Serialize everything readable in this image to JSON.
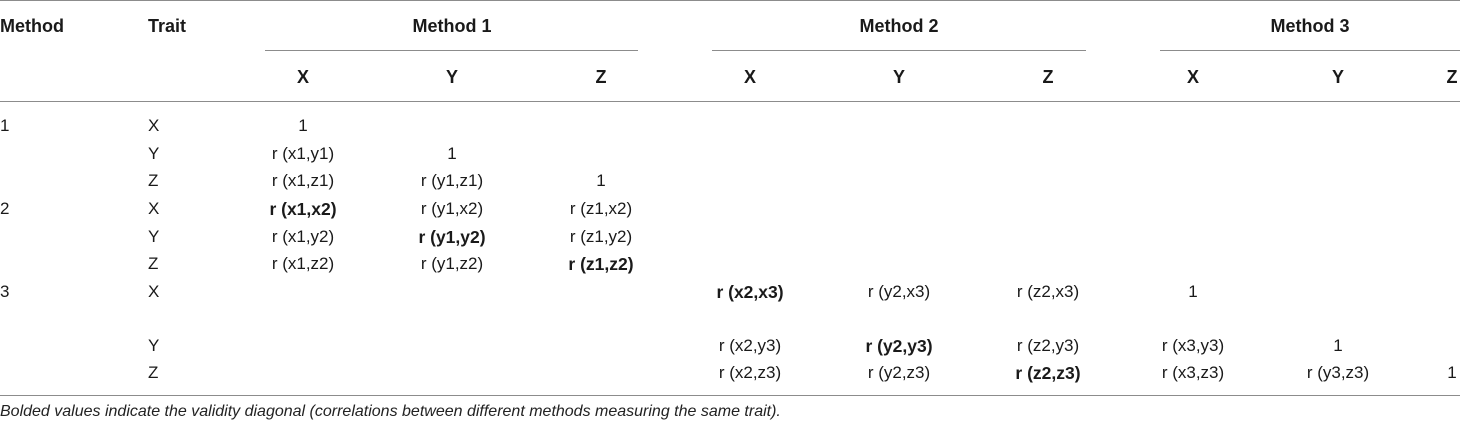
{
  "table": {
    "header": {
      "method": "Method",
      "trait": "Trait",
      "groups": [
        "Method 1",
        "Method 2",
        "Method 3"
      ],
      "sub": [
        "X",
        "Y",
        "Z",
        "X",
        "Y",
        "Z",
        "X",
        "Y",
        "Z"
      ]
    },
    "rows": [
      {
        "method": "1",
        "trait": "X",
        "cells": [
          "1",
          "",
          "",
          "",
          "",
          "",
          "",
          "",
          ""
        ],
        "bold": []
      },
      {
        "method": "",
        "trait": "Y",
        "cells": [
          "r (x1,y1)",
          "1",
          "",
          "",
          "",
          "",
          "",
          "",
          ""
        ],
        "bold": []
      },
      {
        "method": "",
        "trait": "Z",
        "cells": [
          "r (x1,z1)",
          "r (y1,z1)",
          "1",
          "",
          "",
          "",
          "",
          "",
          ""
        ],
        "bold": []
      },
      {
        "method": "2",
        "trait": "X",
        "cells": [
          "r (x1,x2)",
          "r (y1,x2)",
          "r (z1,x2)",
          "",
          "",
          "",
          "",
          "",
          ""
        ],
        "bold": [
          0
        ]
      },
      {
        "method": "",
        "trait": "Y",
        "cells": [
          "r (x1,y2)",
          "r (y1,y2)",
          "r (z1,y2)",
          "",
          "",
          "",
          "",
          "",
          ""
        ],
        "bold": [
          1
        ]
      },
      {
        "method": "",
        "trait": "Z",
        "cells": [
          "r (x1,z2)",
          "r (y1,z2)",
          "r (z1,z2)",
          "",
          "",
          "",
          "",
          "",
          ""
        ],
        "bold": [
          2
        ]
      },
      {
        "method": "3",
        "trait": "X",
        "cells": [
          "",
          "",
          "",
          "r (x2,x3)",
          "r (y2,x3)",
          "r (z2,x3)",
          "1",
          "",
          ""
        ],
        "bold": [
          3
        ]
      },
      {
        "method": "",
        "trait": "Y",
        "cells": [
          "",
          "",
          "",
          "r (x2,y3)",
          "r (y2,y3)",
          "r (z2,y3)",
          "r (x3,y3)",
          "1",
          ""
        ],
        "bold": [
          4
        ]
      },
      {
        "method": "",
        "trait": "Z",
        "cells": [
          "",
          "",
          "",
          "r (x2,z3)",
          "r (y2,z3)",
          "r (z2,z3)",
          "r (x3,z3)",
          "r (y3,z3)",
          "1"
        ],
        "bold": [
          5
        ]
      }
    ],
    "footnote": "Bolded values indicate the validity diagonal (correlations between different methods measuring the same trait)."
  }
}
